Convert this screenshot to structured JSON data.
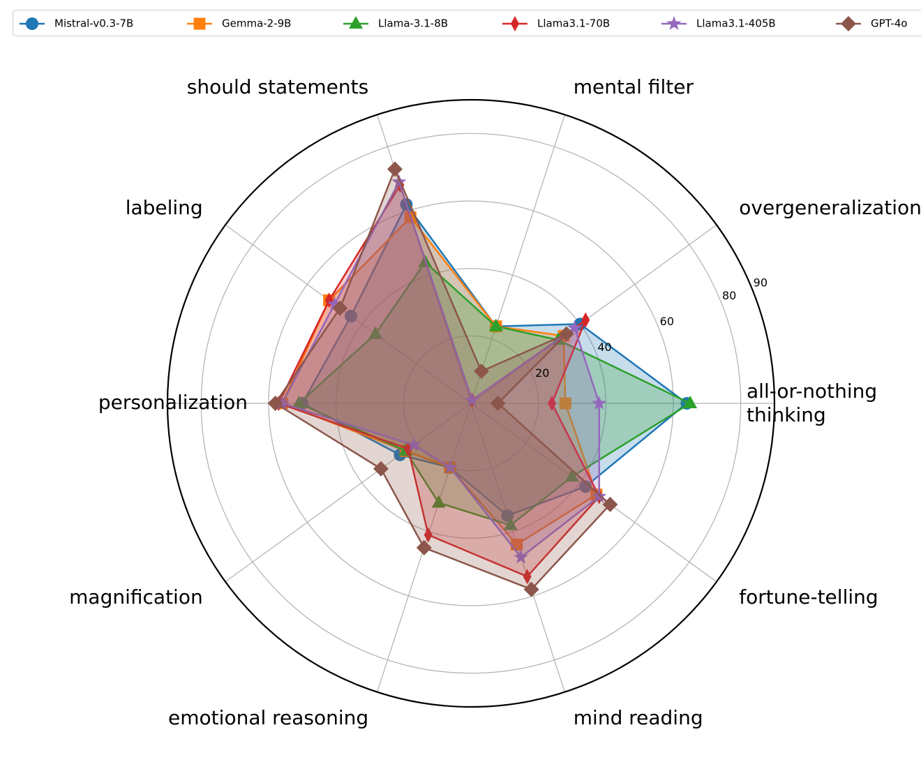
{
  "chart_data": {
    "type": "radar",
    "title": "",
    "categories": [
      "all-or-nothing\nthinking",
      "overgeneralization",
      "mental filter",
      "should statements",
      "labeling",
      "personalization",
      "magnification",
      "emotional reasoning",
      "mind reading",
      "fortune-telling"
    ],
    "rlim": [
      0,
      90
    ],
    "rticks": [
      20,
      40,
      60,
      80,
      90
    ],
    "grid": true,
    "legend_position": "top",
    "series": [
      {
        "name": "Mistral-v0.3-7B",
        "color": "#1f77b4",
        "marker": "circle",
        "values": [
          64,
          40,
          24,
          62,
          44,
          50,
          26,
          20,
          35,
          42
        ]
      },
      {
        "name": "Gemma-2-9B",
        "color": "#ff7f0e",
        "marker": "square",
        "values": [
          28,
          34,
          24,
          58,
          52,
          56,
          24,
          20,
          44,
          46
        ]
      },
      {
        "name": "Llama-3.1-8B",
        "color": "#2ca02c",
        "marker": "triangle",
        "values": [
          65,
          32,
          24,
          44,
          35,
          51,
          24,
          31,
          38,
          37
        ]
      },
      {
        "name": "Llama3.1-70B",
        "color": "#d62728",
        "marker": "thin-diamond",
        "values": [
          24,
          42,
          1,
          68,
          52,
          57,
          23,
          41,
          54,
          47
        ]
      },
      {
        "name": "Llama3.1-405B",
        "color": "#9467bd",
        "marker": "star",
        "values": [
          38,
          38,
          1,
          69,
          50,
          56,
          21,
          20,
          48,
          47
        ]
      },
      {
        "name": "GPT-4o",
        "color": "#8c564b",
        "marker": "diamond",
        "values": [
          8,
          35,
          10,
          73,
          48,
          58,
          33,
          45,
          58,
          51
        ]
      }
    ]
  }
}
